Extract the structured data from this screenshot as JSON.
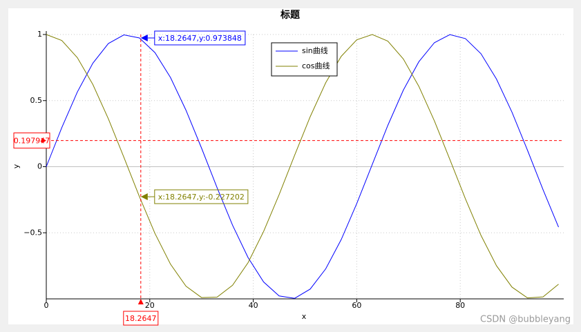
{
  "chart_data": {
    "type": "line",
    "title": "标题",
    "x_label": "x",
    "y_label": "y",
    "x": [
      0,
      3,
      6,
      9,
      12,
      15,
      18,
      21,
      24,
      27,
      30,
      33,
      36,
      39,
      42,
      45,
      48,
      51,
      54,
      57,
      60,
      63,
      66,
      69,
      72,
      75,
      78,
      81,
      84,
      87,
      90,
      93,
      96,
      99
    ],
    "series": [
      {
        "name": "sin曲线",
        "color": "#0000ff",
        "values": [
          0,
          0.296,
          0.565,
          0.783,
          0.932,
          0.997,
          0.974,
          0.863,
          0.675,
          0.427,
          0.141,
          -0.158,
          -0.443,
          -0.688,
          -0.872,
          -0.978,
          -0.996,
          -0.926,
          -0.773,
          -0.551,
          -0.279,
          0.017,
          0.312,
          0.579,
          0.794,
          0.938,
          0.999,
          0.969,
          0.855,
          0.663,
          0.412,
          0.124,
          -0.174,
          -0.457
        ]
      },
      {
        "name": "cos曲线",
        "color": "#808000",
        "values": [
          1,
          0.955,
          0.825,
          0.622,
          0.362,
          0.071,
          -0.227,
          -0.505,
          -0.737,
          -0.904,
          -0.99,
          -0.987,
          -0.897,
          -0.726,
          -0.49,
          -0.211,
          0.087,
          0.378,
          0.635,
          0.835,
          0.96,
          1.0,
          0.95,
          0.815,
          0.608,
          0.347,
          0.054,
          -0.243,
          -0.519,
          -0.749,
          -0.911,
          -0.993,
          -0.985,
          -0.889
        ]
      }
    ],
    "xlim": [
      0,
      100
    ],
    "xticks": [
      0,
      20,
      40,
      60,
      80
    ],
    "ylim": [
      -1,
      1
    ],
    "yticks": [
      1,
      0.5,
      0,
      {
        "value": -0.5,
        "label": "−0.5"
      }
    ],
    "grid": true,
    "legend": "upper-right",
    "crosshair": {
      "x": 18.2647,
      "y": 0.197947,
      "color": "#ff0000"
    },
    "annotations": [
      {
        "text": "x:18.2647,y:0.973848",
        "x": 18.2647,
        "y": 0.973848,
        "color": "#0000ff"
      },
      {
        "text": "x:18.2647,y:-0.227202",
        "x": 18.2647,
        "y": -0.227202,
        "color": "#808000"
      }
    ],
    "watermark": "CSDN @bubbleyang"
  }
}
